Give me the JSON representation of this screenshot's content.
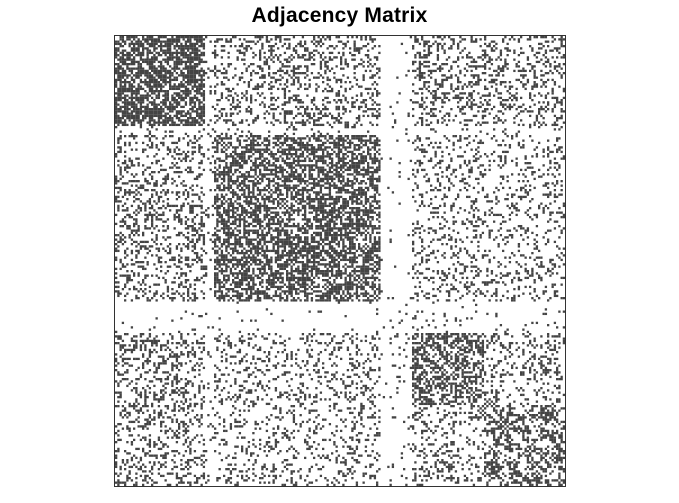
{
  "chart_data": {
    "type": "heatmap",
    "title": "Adjacency Matrix",
    "xlabel": "",
    "ylabel": "",
    "n_nodes": 200,
    "edge_color": "#444444",
    "background_color": "#ffffff",
    "axis_color": "#000000",
    "tick_labels": false,
    "grid": false,
    "communities": [
      {
        "name": "",
        "start": 0,
        "end": 44,
        "within_density": 0.75
      },
      {
        "name": "",
        "start": 44,
        "end": 122,
        "within_density": 0.62
      },
      {
        "name": "",
        "start": 122,
        "end": 132,
        "within_density": 0.04
      },
      {
        "name": "",
        "start": 132,
        "end": 164,
        "within_density": 0.55
      },
      {
        "name": "",
        "start": 164,
        "end": 200,
        "within_density": 0.45
      }
    ],
    "between_density": [
      [
        0.75,
        0.28,
        0.03,
        0.3,
        0.28
      ],
      [
        0.28,
        0.62,
        0.03,
        0.2,
        0.18
      ],
      [
        0.03,
        0.03,
        0.04,
        0.06,
        0.06
      ],
      [
        0.3,
        0.2,
        0.06,
        0.55,
        0.22
      ],
      [
        0.28,
        0.18,
        0.06,
        0.22,
        0.45
      ]
    ],
    "empty_bands": [
      {
        "start": 118,
        "end": 122,
        "density": 0.02
      },
      {
        "start": 40,
        "end": 44,
        "density": 0.08
      }
    ],
    "diagonal_lines": [
      {
        "start": 0,
        "end": 44,
        "offset": 0
      },
      {
        "start": 10,
        "end": 44,
        "offset": 10
      }
    ]
  }
}
